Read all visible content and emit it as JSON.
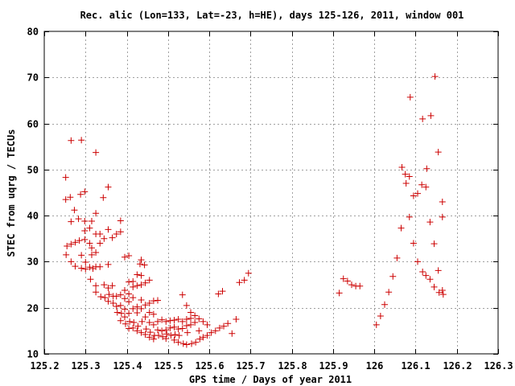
{
  "chart_data": {
    "type": "scatter",
    "title": "Rec. alic (Lon=133, Lat=-23, h=HE), days 125-126, 2011, window 001",
    "xlabel": "GPS time / Days of year 2011",
    "ylabel": "STEC from uqrg / TECUs",
    "xlim": [
      125.2,
      126.3
    ],
    "ylim": [
      10,
      80
    ],
    "x_ticks": [
      125.2,
      125.3,
      125.4,
      125.5,
      125.6,
      125.7,
      125.8,
      125.9,
      126.0,
      126.1,
      126.2,
      126.3
    ],
    "x_tick_labels": [
      "125.2",
      "125.3",
      "125.4",
      "125.5",
      "125.6",
      "125.7",
      "125.8",
      "125.9",
      "126",
      "126.1",
      "126.2",
      "126.3"
    ],
    "y_ticks": [
      10,
      20,
      30,
      40,
      50,
      60,
      70,
      80
    ],
    "y_tick_labels": [
      "10",
      "20",
      "30",
      "40",
      "50",
      "60",
      "70",
      "80"
    ],
    "grid": true,
    "marker": "plus",
    "color": "#cc0000",
    "points": [
      [
        125.252,
        48.3
      ],
      [
        125.252,
        43.5
      ],
      [
        125.255,
        33.4
      ],
      [
        125.253,
        31.5
      ],
      [
        125.263,
        44.0
      ],
      [
        125.265,
        56.3
      ],
      [
        125.265,
        38.7
      ],
      [
        125.265,
        33.8
      ],
      [
        125.265,
        30.0
      ],
      [
        125.273,
        41.2
      ],
      [
        125.275,
        34.2
      ],
      [
        125.275,
        29.0
      ],
      [
        125.283,
        39.3
      ],
      [
        125.285,
        34.6
      ],
      [
        125.288,
        44.6
      ],
      [
        125.29,
        56.4
      ],
      [
        125.29,
        31.4
      ],
      [
        125.29,
        28.6
      ],
      [
        125.298,
        45.2
      ],
      [
        125.298,
        38.8
      ],
      [
        125.298,
        36.7
      ],
      [
        125.298,
        34.8
      ],
      [
        125.3,
        29.9
      ],
      [
        125.3,
        28.4
      ],
      [
        125.31,
        37.3
      ],
      [
        125.31,
        34.0
      ],
      [
        125.31,
        28.8
      ],
      [
        125.312,
        26.2
      ],
      [
        125.315,
        38.8
      ],
      [
        125.315,
        33.0
      ],
      [
        125.315,
        31.5
      ],
      [
        125.318,
        28.5
      ],
      [
        125.325,
        53.7
      ],
      [
        125.325,
        40.5
      ],
      [
        125.325,
        36.0
      ],
      [
        125.325,
        32.0
      ],
      [
        125.325,
        28.9
      ],
      [
        125.325,
        24.8
      ],
      [
        125.325,
        23.4
      ],
      [
        125.335,
        36.0
      ],
      [
        125.335,
        34.0
      ],
      [
        125.335,
        28.9
      ],
      [
        125.337,
        22.4
      ],
      [
        125.343,
        43.9
      ],
      [
        125.345,
        35.0
      ],
      [
        125.345,
        25.0
      ],
      [
        125.347,
        22.2
      ],
      [
        125.355,
        46.2
      ],
      [
        125.355,
        37.0
      ],
      [
        125.355,
        29.4
      ],
      [
        125.355,
        24.3
      ],
      [
        125.357,
        22.9
      ],
      [
        125.355,
        21.4
      ],
      [
        125.365,
        35.2
      ],
      [
        125.365,
        24.8
      ],
      [
        125.367,
        22.5
      ],
      [
        125.367,
        21.0
      ],
      [
        125.375,
        36.0
      ],
      [
        125.375,
        22.5
      ],
      [
        125.375,
        20.3
      ],
      [
        125.377,
        19.0
      ],
      [
        125.385,
        38.9
      ],
      [
        125.385,
        36.5
      ],
      [
        125.385,
        22.8
      ],
      [
        125.385,
        20.5
      ],
      [
        125.387,
        18.8
      ],
      [
        125.385,
        17.2
      ],
      [
        125.395,
        31.0
      ],
      [
        125.395,
        23.8
      ],
      [
        125.395,
        22.0
      ],
      [
        125.395,
        19.7
      ],
      [
        125.395,
        18.0
      ],
      [
        125.397,
        16.5
      ],
      [
        125.405,
        31.3
      ],
      [
        125.405,
        25.6
      ],
      [
        125.405,
        23.0
      ],
      [
        125.405,
        21.3
      ],
      [
        125.405,
        18.8
      ],
      [
        125.407,
        17.0
      ],
      [
        125.405,
        15.5
      ],
      [
        125.415,
        25.7
      ],
      [
        125.415,
        24.5
      ],
      [
        125.415,
        22.2
      ],
      [
        125.415,
        19.8
      ],
      [
        125.417,
        16.8
      ],
      [
        125.415,
        15.6
      ],
      [
        125.425,
        27.2
      ],
      [
        125.425,
        24.8
      ],
      [
        125.425,
        20.2
      ],
      [
        125.425,
        18.9
      ],
      [
        125.427,
        16.0
      ],
      [
        125.425,
        15.0
      ],
      [
        125.432,
        29.5
      ],
      [
        125.435,
        30.4
      ],
      [
        125.435,
        27.0
      ],
      [
        125.435,
        25.0
      ],
      [
        125.435,
        21.7
      ],
      [
        125.435,
        19.8
      ],
      [
        125.437,
        17.0
      ],
      [
        125.435,
        14.6
      ],
      [
        125.443,
        29.3
      ],
      [
        125.445,
        25.4
      ],
      [
        125.445,
        20.6
      ],
      [
        125.445,
        18.0
      ],
      [
        125.447,
        15.4
      ],
      [
        125.445,
        14.2
      ],
      [
        125.455,
        26.0
      ],
      [
        125.455,
        21.0
      ],
      [
        125.455,
        19.0
      ],
      [
        125.455,
        16.8
      ],
      [
        125.457,
        14.7
      ],
      [
        125.455,
        13.6
      ],
      [
        125.465,
        21.5
      ],
      [
        125.465,
        18.6
      ],
      [
        125.465,
        16.3
      ],
      [
        125.467,
        14.0
      ],
      [
        125.465,
        13.2
      ],
      [
        125.475,
        21.6
      ],
      [
        125.475,
        17.0
      ],
      [
        125.475,
        15.2
      ],
      [
        125.477,
        14.0
      ],
      [
        125.485,
        17.4
      ],
      [
        125.485,
        15.0
      ],
      [
        125.487,
        13.7
      ],
      [
        125.495,
        17.0
      ],
      [
        125.495,
        15.2
      ],
      [
        125.497,
        14.3
      ],
      [
        125.495,
        13.3
      ],
      [
        125.505,
        17.2
      ],
      [
        125.505,
        15.6
      ],
      [
        125.507,
        14.0
      ],
      [
        125.515,
        17.3
      ],
      [
        125.515,
        15.8
      ],
      [
        125.517,
        14.2
      ],
      [
        125.515,
        13.0
      ],
      [
        125.525,
        17.5
      ],
      [
        125.525,
        15.4
      ],
      [
        125.527,
        14.0
      ],
      [
        125.525,
        12.5
      ],
      [
        125.535,
        22.8
      ],
      [
        125.535,
        17.0
      ],
      [
        125.535,
        15.5
      ],
      [
        125.537,
        12.2
      ],
      [
        125.545,
        20.5
      ],
      [
        125.545,
        17.5
      ],
      [
        125.545,
        16.1
      ],
      [
        125.547,
        14.6
      ],
      [
        125.545,
        12.0
      ],
      [
        125.555,
        19.0
      ],
      [
        125.555,
        17.7
      ],
      [
        125.555,
        16.3
      ],
      [
        125.557,
        12.2
      ],
      [
        125.565,
        18.3
      ],
      [
        125.565,
        16.8
      ],
      [
        125.567,
        12.5
      ],
      [
        125.575,
        17.6
      ],
      [
        125.575,
        15.0
      ],
      [
        125.577,
        13.2
      ],
      [
        125.585,
        17.0
      ],
      [
        125.585,
        13.6
      ],
      [
        125.595,
        16.3
      ],
      [
        125.595,
        14.0
      ],
      [
        125.605,
        14.6
      ],
      [
        125.615,
        15.0
      ],
      [
        125.622,
        23.0
      ],
      [
        125.625,
        15.6
      ],
      [
        125.632,
        23.6
      ],
      [
        125.635,
        16.0
      ],
      [
        125.645,
        16.6
      ],
      [
        125.655,
        14.4
      ],
      [
        125.665,
        17.5
      ],
      [
        125.673,
        25.5
      ],
      [
        125.685,
        26.0
      ],
      [
        125.695,
        27.5
      ],
      [
        125.915,
        23.2
      ],
      [
        125.925,
        26.3
      ],
      [
        125.935,
        25.8
      ],
      [
        125.945,
        25.0
      ],
      [
        125.955,
        24.7
      ],
      [
        125.965,
        24.7
      ],
      [
        126.005,
        16.3
      ],
      [
        126.015,
        18.2
      ],
      [
        126.025,
        20.7
      ],
      [
        126.035,
        23.4
      ],
      [
        126.045,
        26.8
      ],
      [
        126.055,
        30.8
      ],
      [
        126.065,
        37.3
      ],
      [
        126.067,
        50.5
      ],
      [
        126.075,
        49.0
      ],
      [
        126.077,
        47.0
      ],
      [
        126.085,
        48.5
      ],
      [
        126.085,
        39.7
      ],
      [
        126.087,
        65.7
      ],
      [
        126.095,
        44.3
      ],
      [
        126.095,
        34.0
      ],
      [
        126.105,
        44.8
      ],
      [
        126.105,
        30.0
      ],
      [
        126.115,
        46.7
      ],
      [
        126.117,
        27.8
      ],
      [
        126.117,
        61.0
      ],
      [
        126.125,
        46.2
      ],
      [
        126.125,
        27.0
      ],
      [
        126.127,
        50.2
      ],
      [
        126.135,
        38.6
      ],
      [
        126.135,
        26.2
      ],
      [
        126.137,
        61.7
      ],
      [
        126.145,
        33.9
      ],
      [
        126.145,
        24.5
      ],
      [
        126.147,
        70.2
      ],
      [
        126.155,
        53.8
      ],
      [
        126.155,
        28.1
      ],
      [
        126.157,
        23.3
      ],
      [
        126.165,
        43.0
      ],
      [
        126.165,
        39.7
      ],
      [
        126.165,
        23.8
      ],
      [
        126.167,
        22.9
      ]
    ]
  }
}
